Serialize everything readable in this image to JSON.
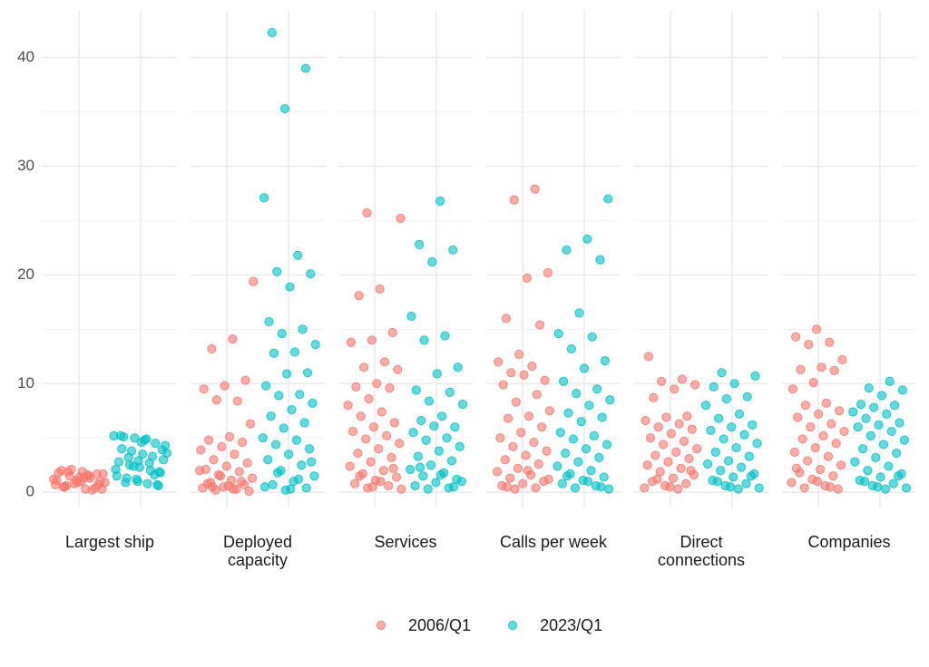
{
  "chart_data": {
    "type": "strip",
    "categories": [
      "Largest ship",
      "Deployed\ncapacity",
      "Services",
      "Calls per week",
      "Direct\nconnections",
      "Companies"
    ],
    "ylim": [
      -1.4,
      44.3
    ],
    "yticks": [
      0,
      10,
      20,
      30,
      40
    ],
    "grid": true,
    "legend": "bottom",
    "series": [
      {
        "name": "2006/Q1",
        "color": "#f8766d",
        "values": [
          [
            0.3,
            0.5,
            0.7,
            0.9,
            1.1,
            1.3,
            1.5,
            1.7,
            1.9,
            2.0,
            0.4,
            0.8,
            1.2,
            1.6,
            0.6,
            1.0,
            1.4,
            1.8,
            0.2,
            2.1,
            0.9,
            1.3,
            0.5,
            1.7,
            1.1,
            0.7,
            1.5,
            1.9,
            0.3,
            1.0
          ],
          [
            19.4,
            14.1,
            13.2,
            10.3,
            9.8,
            9.5,
            8.4,
            8.5,
            6.3,
            5.1,
            4.8,
            4.6,
            4.2,
            3.9,
            3.5,
            3.0,
            2.7,
            2.4,
            2.1,
            1.9,
            1.6,
            1.3,
            1.1,
            0.9,
            0.7,
            0.5,
            0.4,
            0.3,
            0.2,
            0.1,
            0.6,
            0.8,
            1.0,
            1.5,
            2.0,
            0.3,
            0.5
          ],
          [
            25.7,
            25.2,
            18.7,
            18.1,
            14.7,
            14.0,
            13.8,
            12.0,
            11.5,
            11.3,
            10.0,
            9.7,
            9.6,
            8.6,
            8.0,
            7.4,
            7.0,
            6.4,
            6.0,
            5.6,
            5.2,
            4.9,
            4.5,
            4.0,
            3.6,
            3.2,
            2.8,
            2.4,
            2.0,
            1.7,
            1.4,
            1.1,
            0.8,
            0.6,
            0.4,
            0.3,
            1.0,
            1.5,
            2.2,
            0.5
          ],
          [
            27.9,
            26.9,
            20.2,
            19.7,
            16.0,
            15.4,
            12.7,
            12.0,
            11.6,
            11.0,
            10.3,
            10.8,
            9.9,
            9.0,
            8.3,
            7.5,
            7.0,
            6.8,
            6.0,
            5.5,
            5.0,
            4.6,
            4.2,
            3.8,
            3.4,
            3.0,
            2.6,
            2.2,
            1.9,
            1.6,
            1.3,
            1.0,
            0.8,
            0.6,
            0.4,
            0.3,
            1.2,
            2.0,
            0.5
          ],
          [
            12.5,
            10.4,
            10.2,
            9.9,
            9.5,
            8.7,
            7.0,
            6.9,
            6.6,
            6.3,
            6.0,
            5.8,
            5.4,
            5.0,
            4.7,
            4.4,
            4.0,
            3.7,
            3.4,
            3.1,
            2.8,
            2.5,
            2.2,
            1.9,
            1.6,
            1.3,
            1.0,
            0.8,
            0.6,
            0.4,
            0.3,
            1.2,
            2.0,
            0.5
          ],
          [
            15.0,
            14.3,
            13.8,
            13.6,
            12.2,
            11.5,
            11.3,
            11.2,
            10.1,
            9.5,
            8.2,
            8.0,
            7.5,
            7.2,
            6.9,
            6.3,
            6.0,
            5.6,
            5.2,
            4.9,
            4.5,
            4.1,
            3.7,
            3.3,
            2.9,
            2.5,
            2.1,
            1.8,
            1.5,
            1.2,
            0.9,
            0.6,
            0.4,
            0.3,
            1.0,
            2.2,
            0.5
          ]
        ]
      },
      {
        "name": "2023/Q1",
        "color": "#00bfc4",
        "values": [
          [
            0.6,
            1.0,
            1.5,
            2.0,
            2.5,
            3.0,
            3.5,
            4.0,
            4.5,
            5.0,
            5.2,
            0.8,
            1.3,
            1.8,
            2.3,
            2.8,
            3.3,
            3.8,
            4.3,
            4.8,
            5.1,
            0.7,
            1.2,
            2.1,
            2.7,
            3.2,
            3.9,
            4.6,
            5.2,
            1.6,
            2.4,
            3.6,
            4.9,
            0.9,
            1.9,
            2.9
          ],
          [
            42.3,
            39.0,
            35.3,
            27.1,
            21.8,
            20.3,
            20.1,
            18.9,
            15.7,
            15.0,
            14.6,
            13.6,
            12.9,
            12.8,
            11.0,
            10.9,
            9.8,
            9.0,
            8.9,
            8.2,
            7.6,
            7.0,
            6.4,
            5.9,
            5.0,
            4.8,
            4.4,
            4.0,
            3.5,
            3.0,
            2.5,
            2.0,
            1.5,
            1.0,
            0.7,
            0.4,
            0.2,
            0.5,
            1.2,
            1.8,
            2.8,
            0.3
          ],
          [
            26.8,
            22.8,
            22.3,
            21.2,
            16.2,
            14.4,
            14.0,
            11.5,
            10.9,
            9.4,
            9.2,
            8.4,
            8.1,
            7.0,
            6.6,
            6.0,
            6.1,
            5.5,
            5.0,
            4.8,
            4.2,
            3.8,
            3.3,
            2.9,
            2.5,
            2.1,
            1.8,
            1.5,
            1.2,
            0.9,
            0.6,
            0.4,
            0.3,
            1.0,
            1.6,
            2.3,
            0.5
          ],
          [
            27.0,
            23.3,
            22.3,
            21.4,
            16.5,
            14.6,
            14.3,
            13.2,
            12.1,
            11.4,
            10.2,
            9.5,
            9.1,
            8.5,
            8.0,
            7.3,
            6.9,
            6.5,
            5.5,
            5.2,
            4.9,
            4.4,
            4.0,
            3.6,
            3.2,
            2.8,
            2.4,
            2.0,
            1.7,
            1.4,
            1.1,
            0.8,
            0.6,
            0.4,
            0.3,
            1.0,
            1.5,
            0.5
          ],
          [
            11.0,
            10.7,
            10.0,
            9.7,
            8.8,
            8.6,
            8.0,
            7.2,
            6.8,
            6.2,
            6.0,
            5.7,
            5.3,
            4.9,
            4.5,
            4.1,
            3.7,
            3.3,
            2.9,
            2.6,
            2.3,
            2.0,
            1.7,
            1.4,
            1.1,
            0.8,
            0.6,
            0.4,
            0.3,
            1.0,
            1.5,
            0.5
          ],
          [
            10.2,
            9.6,
            9.4,
            8.9,
            8.1,
            8.0,
            7.8,
            7.4,
            7.2,
            6.8,
            6.4,
            6.2,
            6.0,
            5.6,
            5.2,
            4.8,
            4.4,
            4.0,
            3.6,
            3.2,
            2.8,
            2.4,
            2.0,
            1.7,
            1.4,
            1.1,
            0.8,
            0.6,
            0.4,
            0.3,
            1.0,
            1.5,
            0.5
          ]
        ]
      }
    ]
  }
}
